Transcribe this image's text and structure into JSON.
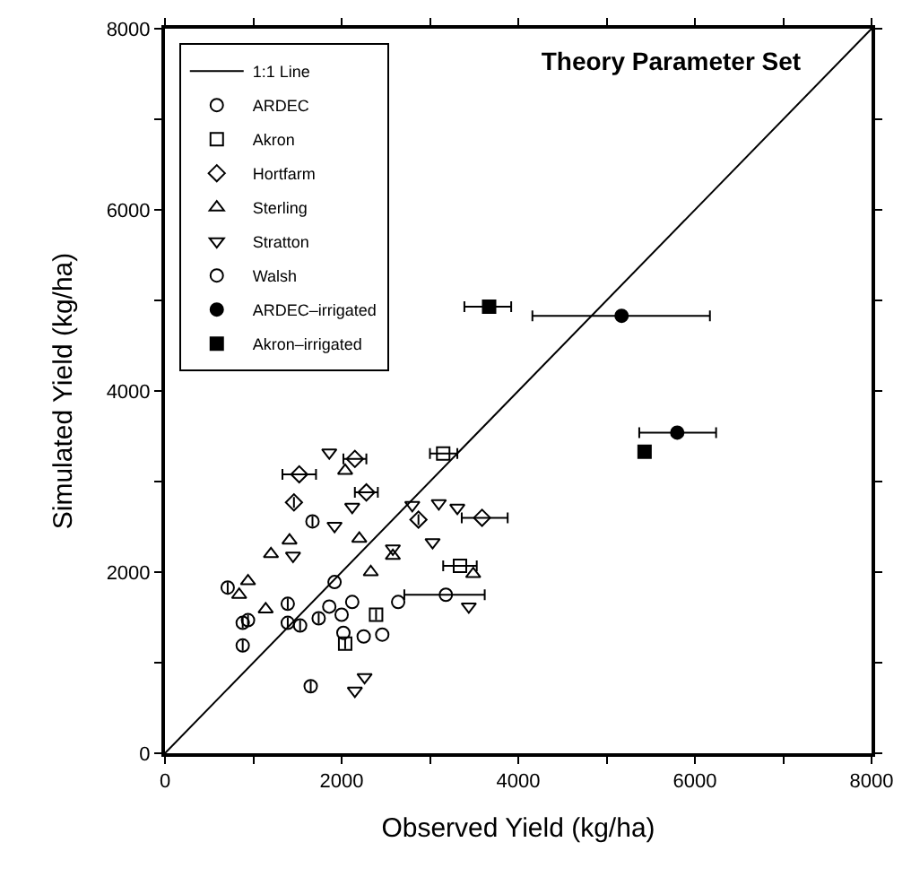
{
  "chart_data": {
    "type": "scatter",
    "title": "Theory Parameter Set",
    "xlabel": "Observed Yield (kg/ha)",
    "ylabel": "Simulated Yield (kg/ha)",
    "xlim": [
      0,
      8000
    ],
    "ylim": [
      0,
      8000
    ],
    "xticks": [
      0,
      {
        "value": 1000,
        "label": null
      },
      2000,
      {
        "value": 3000,
        "label": null
      },
      4000,
      {
        "value": 5000,
        "label": null
      },
      6000,
      {
        "value": 7000,
        "label": null
      },
      8000
    ],
    "yticks": [
      0,
      {
        "value": 1000,
        "label": null
      },
      2000,
      {
        "value": 3000,
        "label": null
      },
      4000,
      {
        "value": 5000,
        "label": null
      },
      6000,
      {
        "value": 7000,
        "label": null
      },
      8000
    ],
    "legend": "top left",
    "series": [
      {
        "name": "1:1 Line",
        "type": "line",
        "color": "#000000",
        "marker": "none",
        "line_style": "solid",
        "x": [
          0,
          8000
        ],
        "values": [
          0,
          8000
        ]
      },
      {
        "name": "ARDEC",
        "color": "#000000",
        "marker": "circle-open",
        "x": [
          710,
          880,
          940,
          880,
          1390,
          1390,
          1530,
          1670,
          1650,
          1740,
          3180
        ],
        "values": [
          1830,
          1440,
          1470,
          1190,
          1650,
          1440,
          1410,
          2560,
          740,
          1490,
          1750
        ],
        "xerrors": [
          null,
          null,
          null,
          null,
          null,
          null,
          null,
          null,
          null,
          null,
          [
            2710,
            3620
          ]
        ]
      },
      {
        "name": "Akron",
        "color": "#000000",
        "marker": "square-open",
        "x": [
          3150,
          3340,
          2390,
          2040
        ],
        "values": [
          3310,
          2070,
          1530,
          1210
        ],
        "xerrors": [
          [
            3000,
            3310
          ],
          [
            3150,
            3530
          ],
          null,
          null
        ]
      },
      {
        "name": "Hortfarm",
        "color": "#000000",
        "marker": "diamond-open",
        "x": [
          1520,
          1460,
          2150,
          2280,
          3590,
          2870
        ],
        "values": [
          3080,
          2770,
          3250,
          2880,
          2600,
          2580
        ],
        "xerrors": [
          [
            1330,
            1710
          ],
          null,
          [
            2020,
            2280
          ],
          [
            2150,
            2410
          ],
          [
            3360,
            3880
          ],
          null
        ]
      },
      {
        "name": "Sterling",
        "color": "#000000",
        "marker": "triangle-up-open",
        "x": [
          1200,
          1410,
          940,
          840,
          2040,
          2330,
          3490,
          2200,
          1140,
          2580
        ],
        "values": [
          2200,
          2350,
          1900,
          1750,
          3120,
          2000,
          1980,
          2370,
          1590,
          2180
        ]
      },
      {
        "name": "Stratton",
        "color": "#000000",
        "marker": "triangle-down-open",
        "x": [
          1860,
          2120,
          3030,
          3100,
          3310,
          3440,
          2150,
          2260,
          1450,
          2800,
          1920,
          2580
        ],
        "values": [
          3320,
          2720,
          2330,
          2760,
          2710,
          1620,
          690,
          840,
          2180,
          2740,
          2510,
          2260
        ]
      },
      {
        "name": "Walsh",
        "color": "#000000",
        "marker": "circle-open",
        "x": [
          1920,
          1860,
          2000,
          2020,
          2120,
          2250,
          2460,
          2640
        ],
        "values": [
          1890,
          1620,
          1530,
          1330,
          1670,
          1290,
          1310,
          1670
        ]
      },
      {
        "name": "ARDEC–irrigated",
        "color": "#000000",
        "marker": "circle",
        "x": [
          5170,
          5800
        ],
        "values": [
          4830,
          3540
        ],
        "xerrors": [
          [
            4160,
            6170
          ],
          [
            5370,
            6240
          ]
        ]
      },
      {
        "name": "Akron–irrigated",
        "color": "#000000",
        "marker": "square",
        "x": [
          3670,
          5430
        ],
        "values": [
          4930,
          3330
        ],
        "xerrors": [
          [
            3390,
            3920
          ],
          null
        ]
      }
    ]
  }
}
